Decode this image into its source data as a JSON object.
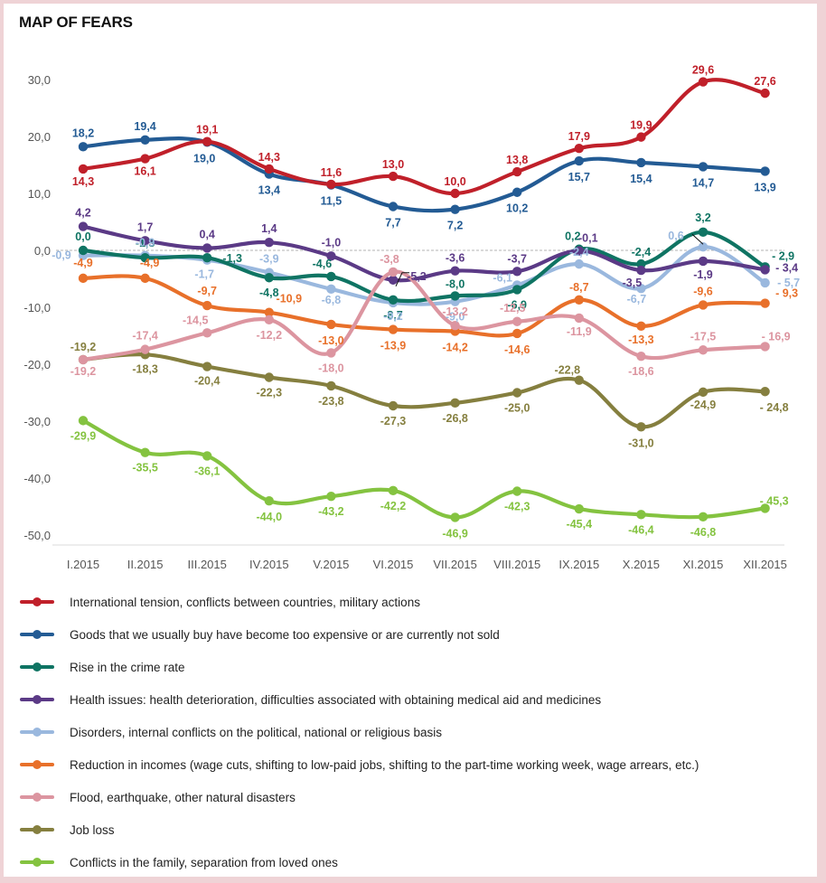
{
  "title": "MAP OF FEARS",
  "chart_data": {
    "type": "line",
    "title": "MAP OF FEARS",
    "xlabel": "",
    "ylabel": "",
    "categories": [
      "I.2015",
      "II.2015",
      "III.2015",
      "IV.2015",
      "V.2015",
      "VI.2015",
      "VII.2015",
      "VIII.2015",
      "IX.2015",
      "X.2015",
      "XI.2015",
      "XII.2015"
    ],
    "yticks": [
      "30,0",
      "20,0",
      "10,0",
      "0,0",
      "-10,0",
      "-20,0",
      "-30,0",
      "-40,0",
      "-50,0"
    ],
    "ytick_values": [
      30,
      20,
      10,
      0,
      -10,
      -20,
      -30,
      -40,
      -50
    ],
    "ylim": [
      -50,
      30
    ],
    "grid": false,
    "zero_line": "dashed",
    "legend_position": "bottom",
    "smooth": true,
    "series": [
      {
        "name": "International tension, conflicts between countries, military actions",
        "color": "#c0202a",
        "values": [
          14.3,
          16.1,
          19.1,
          14.3,
          11.6,
          13.0,
          10.0,
          13.8,
          17.9,
          19.9,
          29.6,
          27.6
        ],
        "labels": [
          "14,3",
          "16,1",
          "19,1",
          "14,3",
          "11,6",
          "13,0",
          "10,0",
          "13,8",
          "17,9",
          "19,9",
          "29,6",
          "27,6"
        ]
      },
      {
        "name": "Goods that we usually buy have become too expensive or are currently not sold",
        "color": "#235b94",
        "values": [
          18.2,
          19.4,
          19.0,
          13.4,
          11.5,
          7.7,
          7.2,
          10.2,
          15.7,
          15.4,
          14.7,
          13.9
        ],
        "labels": [
          "18,2",
          "19,4",
          "19,0",
          "13,4",
          "11,5",
          "7,7",
          "7,2",
          "10,2",
          "15,7",
          "15,4",
          "14,7",
          "13,9"
        ]
      },
      {
        "name": "Rise in the crime rate",
        "color": "#0f7463",
        "values": [
          0.0,
          -1.3,
          -1.3,
          -4.8,
          -4.6,
          -8.7,
          -8.0,
          -6.9,
          0.2,
          -2.4,
          3.2,
          -2.9
        ],
        "labels": [
          "0,0",
          "-1,3",
          "-1,3",
          "-4,8",
          "-4,6",
          "-8,7",
          "-8,0",
          "-6,9",
          "0,2",
          "-2,4",
          "3,2",
          "- 2,9"
        ]
      },
      {
        "name": "Health issues: health deterioration, difficulties associated with obtaining medical aid and medicines",
        "color": "#5b3a86",
        "values": [
          4.2,
          1.7,
          0.4,
          1.4,
          -1.0,
          -5.2,
          -3.6,
          -3.7,
          -0.1,
          -3.5,
          -1.9,
          -3.4
        ],
        "labels": [
          "4,2",
          "1,7",
          "0,4",
          "1,4",
          "-1,0",
          "-5,2",
          "-3,6",
          "-3,7",
          "-0,1",
          "-3,5",
          "-1,9",
          "- 3,4"
        ]
      },
      {
        "name": "Disorders, internal conflicts on the political, national or religious basis",
        "color": "#9ab8de",
        "values": [
          -0.9,
          -0.9,
          -1.7,
          -3.9,
          -6.8,
          -9.2,
          -9.0,
          -6.1,
          -2.4,
          -6.7,
          0.6,
          -5.7
        ],
        "labels": [
          "-0,9",
          "-0,9",
          "-1,7",
          "-3,9",
          "-6,8",
          "-9,2",
          "-9,0",
          "-6,1",
          "-2,4",
          "-6,7",
          "0,6",
          "- 5,7"
        ]
      },
      {
        "name": "Reduction in incomes (wage cuts, shifting to low-paid jobs, shifting to the part-time working week, wage arrears, etc.)",
        "color": "#e8702a",
        "values": [
          -4.9,
          -4.9,
          -9.7,
          -10.9,
          -13.0,
          -13.9,
          -14.2,
          -14.6,
          -8.7,
          -13.3,
          -9.6,
          -9.3
        ],
        "labels": [
          "-4,9",
          "-4,9",
          "-9,7",
          "-10,9",
          "-13,0",
          "-13,9",
          "-14,2",
          "-14,6",
          "-8,7",
          "-13,3",
          "-9,6",
          "- 9,3"
        ]
      },
      {
        "name": "Flood, earthquake, other natural disasters",
        "color": "#dc95a0",
        "values": [
          -19.2,
          -17.4,
          -14.5,
          -12.2,
          -18.0,
          -3.8,
          -13.2,
          -12.5,
          -11.9,
          -18.6,
          -17.5,
          -16.9
        ],
        "labels": [
          "-19,2",
          "-17,4",
          "-14,5",
          "-12,2",
          "-18,0",
          "-3,8",
          "-13,2",
          "-12,5",
          "-11,9",
          "-18,6",
          "-17,5",
          "- 16,9"
        ]
      },
      {
        "name": "Job loss",
        "color": "#857f3f",
        "values": [
          -19.2,
          -18.3,
          -20.4,
          -22.3,
          -23.8,
          -27.3,
          -26.8,
          -25.0,
          -22.8,
          -31.0,
          -24.9,
          -24.8
        ],
        "labels": [
          "-19,2",
          "-18,3",
          "-20,4",
          "-22,3",
          "-23,8",
          "-27,3",
          "-26,8",
          "-25,0",
          "-22,8",
          "-31,0",
          "-24,9",
          "- 24,8"
        ]
      },
      {
        "name": "Conflicts in the family, separation from loved ones",
        "color": "#84c340",
        "values": [
          -29.9,
          -35.5,
          -36.1,
          -44.0,
          -43.2,
          -42.2,
          -46.9,
          -42.3,
          -45.4,
          -46.4,
          -46.8,
          -45.3
        ],
        "labels": [
          "-29,9",
          "-35,5",
          "-36,1",
          "-44,0",
          "-43,2",
          "-42,2",
          "-46,9",
          "-42,3",
          "-45,4",
          "-46,4",
          "-46,8",
          "- 45,3"
        ]
      }
    ]
  }
}
